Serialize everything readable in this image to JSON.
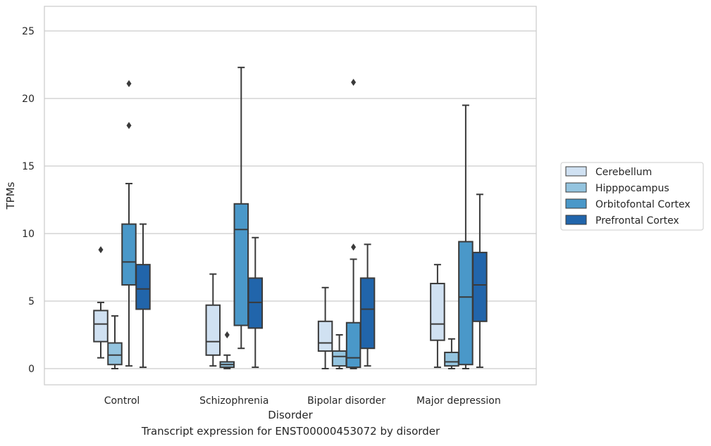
{
  "caption": "Transcript expression for ENST00000453072 by disorder",
  "chart_data": {
    "type": "box",
    "xlabel": "Disorder",
    "ylabel": "TPMs",
    "ylim": [
      -1.2,
      26.8
    ],
    "yticks": [
      0,
      5,
      10,
      15,
      20,
      25
    ],
    "grid": "horizontal",
    "legend_position": "right",
    "categories": [
      "Control",
      "Schizophrenia",
      "Bipolar disorder",
      "Major depression"
    ],
    "series": [
      {
        "name": "Cerebellum",
        "color": "#d0e1f2",
        "boxes": [
          {
            "whisker_low": 0.8,
            "q1": 2.0,
            "median": 3.3,
            "q3": 4.3,
            "whisker_high": 4.9,
            "outliers": [
              8.8
            ]
          },
          {
            "whisker_low": 0.2,
            "q1": 1.0,
            "median": 2.0,
            "q3": 4.7,
            "whisker_high": 7.0,
            "outliers": []
          },
          {
            "whisker_low": 0.0,
            "q1": 1.3,
            "median": 1.9,
            "q3": 3.5,
            "whisker_high": 6.0,
            "outliers": []
          },
          {
            "whisker_low": 0.1,
            "q1": 2.1,
            "median": 3.3,
            "q3": 6.3,
            "whisker_high": 7.7,
            "outliers": []
          }
        ]
      },
      {
        "name": "Hipppocampus",
        "color": "#94c4df",
        "boxes": [
          {
            "whisker_low": 0.0,
            "q1": 0.3,
            "median": 1.0,
            "q3": 1.9,
            "whisker_high": 3.9,
            "outliers": []
          },
          {
            "whisker_low": 0.0,
            "q1": 0.1,
            "median": 0.3,
            "q3": 0.5,
            "whisker_high": 1.0,
            "outliers": [
              2.5
            ]
          },
          {
            "whisker_low": 0.0,
            "q1": 0.2,
            "median": 0.9,
            "q3": 1.3,
            "whisker_high": 2.5,
            "outliers": []
          },
          {
            "whisker_low": 0.0,
            "q1": 0.2,
            "median": 0.5,
            "q3": 1.2,
            "whisker_high": 2.2,
            "outliers": []
          }
        ]
      },
      {
        "name": "Orbitofontal Cortex",
        "color": "#4a98c9",
        "boxes": [
          {
            "whisker_low": 0.2,
            "q1": 6.2,
            "median": 7.9,
            "q3": 10.7,
            "whisker_high": 13.7,
            "outliers": [
              18.0,
              21.1
            ]
          },
          {
            "whisker_low": 1.5,
            "q1": 3.2,
            "median": 10.3,
            "q3": 12.2,
            "whisker_high": 22.3,
            "outliers": []
          },
          {
            "whisker_low": 0.0,
            "q1": 0.1,
            "median": 0.8,
            "q3": 3.4,
            "whisker_high": 8.1,
            "outliers": [
              9.0,
              21.2
            ]
          },
          {
            "whisker_low": 0.0,
            "q1": 0.3,
            "median": 5.3,
            "q3": 9.4,
            "whisker_high": 19.5,
            "outliers": []
          }
        ]
      },
      {
        "name": "Prefrontal Cortex",
        "color": "#2165ab",
        "boxes": [
          {
            "whisker_low": 0.1,
            "q1": 4.4,
            "median": 5.9,
            "q3": 7.7,
            "whisker_high": 10.7,
            "outliers": []
          },
          {
            "whisker_low": 0.1,
            "q1": 3.0,
            "median": 4.9,
            "q3": 6.7,
            "whisker_high": 9.7,
            "outliers": []
          },
          {
            "whisker_low": 0.2,
            "q1": 1.5,
            "median": 4.4,
            "q3": 6.7,
            "whisker_high": 9.2,
            "outliers": []
          },
          {
            "whisker_low": 0.1,
            "q1": 3.5,
            "median": 6.2,
            "q3": 8.6,
            "whisker_high": 12.9,
            "outliers": []
          }
        ]
      }
    ]
  }
}
